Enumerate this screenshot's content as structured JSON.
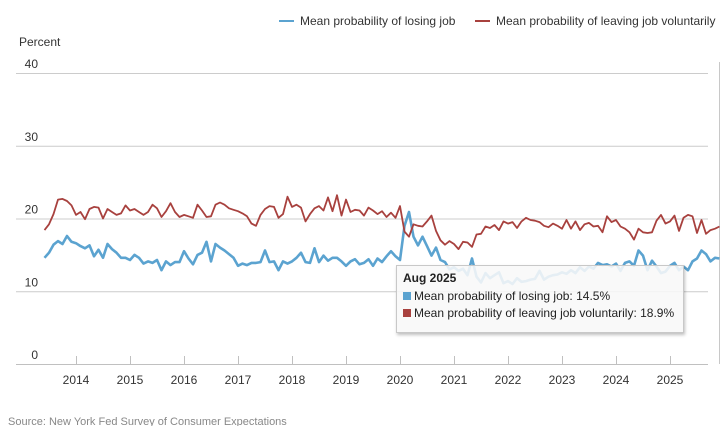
{
  "chart_data": {
    "type": "line",
    "title": "",
    "ylabel": "Percent",
    "xlabel": "",
    "ylim": [
      0,
      40
    ],
    "yticks": [
      0,
      10,
      20,
      30,
      40
    ],
    "xticks": [
      "2014",
      "2015",
      "2016",
      "2017",
      "2018",
      "2019",
      "2020",
      "2021",
      "2022",
      "2023",
      "2024",
      "2025"
    ],
    "x_start": "2013-06",
    "x_end": "2025-08",
    "frequency": "monthly",
    "grid": true,
    "legend_position": "top-right",
    "series": [
      {
        "name": "Mean probability of losing job",
        "color": "#5ba3d0",
        "values": [
          14.6,
          15.3,
          16.4,
          16.9,
          16.5,
          17.6,
          16.8,
          16.6,
          16.2,
          15.9,
          16.3,
          14.8,
          15.7,
          14.6,
          16.5,
          15.8,
          15.3,
          14.6,
          14.6,
          14.3,
          15.0,
          14.6,
          13.8,
          14.1,
          13.9,
          14.3,
          12.9,
          14.1,
          13.6,
          14.0,
          14.0,
          15.5,
          14.5,
          13.7,
          15.0,
          15.3,
          16.8,
          14.1,
          16.5,
          16.0,
          15.6,
          15.1,
          14.6,
          13.5,
          13.8,
          13.6,
          13.9,
          13.9,
          14.0,
          15.6,
          14.0,
          14.1,
          12.9,
          14.1,
          13.8,
          14.1,
          14.6,
          15.3,
          14.0,
          13.9,
          15.9,
          14.0,
          14.9,
          14.2,
          14.6,
          14.6,
          14.1,
          13.5,
          14.1,
          14.4,
          13.7,
          13.9,
          14.4,
          13.5,
          14.5,
          14.0,
          14.8,
          15.5,
          14.8,
          14.3,
          19.0,
          20.9,
          17.5,
          16.3,
          17.5,
          16.2,
          14.9,
          16.0,
          14.3,
          14.0,
          13.0,
          13.3,
          12.8,
          13.1,
          12.2,
          14.5,
          12.0,
          11.2,
          12.5,
          11.8,
          12.2,
          12.6,
          11.1,
          11.4,
          11.0,
          11.8,
          11.3,
          11.4,
          11.6,
          11.7,
          12.8,
          11.6,
          12.0,
          12.2,
          12.3,
          12.6,
          12.4,
          12.9,
          12.5,
          13.3,
          12.8,
          13.4,
          13.1,
          13.9,
          13.6,
          13.7,
          13.4,
          13.8,
          12.8,
          13.9,
          14.1,
          13.5,
          15.6,
          14.9,
          12.9,
          14.2,
          13.4,
          12.5,
          12.7,
          13.5,
          13.9,
          12.9,
          13.4,
          12.9,
          14.1,
          14.5,
          15.6,
          15.1,
          14.1,
          14.6,
          14.5
        ]
      },
      {
        "name": "Mean probability of leaving job voluntarily",
        "color": "#a8413e",
        "values": [
          18.4,
          19.2,
          20.6,
          22.6,
          22.7,
          22.4,
          21.8,
          20.5,
          20.9,
          19.9,
          21.3,
          21.6,
          21.5,
          20.0,
          21.3,
          20.9,
          20.5,
          20.7,
          21.8,
          21.1,
          21.3,
          20.9,
          20.5,
          20.9,
          21.9,
          21.4,
          20.2,
          21.0,
          22.1,
          20.9,
          20.2,
          20.5,
          20.3,
          20.1,
          21.9,
          21.1,
          20.2,
          20.3,
          21.9,
          22.2,
          21.9,
          21.4,
          21.2,
          21.0,
          20.7,
          20.3,
          19.3,
          19.0,
          20.5,
          21.3,
          21.7,
          21.6,
          20.1,
          20.6,
          23.0,
          21.6,
          21.9,
          21.5,
          19.6,
          20.6,
          21.4,
          21.7,
          21.1,
          22.9,
          21.0,
          23.2,
          20.4,
          22.6,
          20.9,
          21.2,
          21.1,
          20.4,
          21.5,
          21.1,
          20.6,
          21.0,
          20.2,
          20.8,
          20.1,
          21.7,
          18.2,
          17.5,
          19.2,
          19.0,
          18.9,
          19.6,
          20.4,
          18.3,
          17.0,
          16.4,
          16.9,
          16.5,
          15.8,
          16.8,
          16.7,
          16.1,
          17.8,
          17.9,
          18.9,
          18.7,
          19.1,
          18.4,
          19.6,
          19.3,
          19.5,
          18.7,
          19.6,
          20.1,
          19.8,
          19.7,
          19.5,
          19.0,
          18.8,
          19.3,
          19.0,
          18.6,
          19.8,
          18.6,
          19.6,
          18.4,
          19.2,
          19.4,
          18.9,
          19.0,
          18.1,
          20.3,
          19.5,
          19.8,
          18.9,
          18.6,
          18.1,
          17.1,
          18.6,
          18.1,
          18.0,
          18.1,
          19.7,
          20.5,
          19.3,
          19.6,
          20.4,
          18.3,
          20.1,
          20.5,
          20.3,
          18.0,
          19.8,
          17.9,
          18.4,
          18.6,
          18.9
        ]
      }
    ],
    "tooltip": {
      "title": "Aug 2025",
      "rows": [
        {
          "label": "Mean probability of losing job",
          "value": "14.5%"
        },
        {
          "label": "Mean probability of leaving job voluntarily",
          "value": "18.9%"
        }
      ]
    },
    "source": "Source: New York Fed Survey of Consumer Expectations"
  },
  "legend": {
    "items": [
      {
        "label": "Mean probability of losing job",
        "color": "#5ba3d0"
      },
      {
        "label": "Mean probability of leaving job voluntarily",
        "color": "#a8413e"
      }
    ]
  },
  "tooltip_text": {
    "title": "Aug 2025",
    "row1": "Mean probability of losing job: 14.5%",
    "row2": "Mean probability of leaving job voluntarily: 18.9%"
  }
}
